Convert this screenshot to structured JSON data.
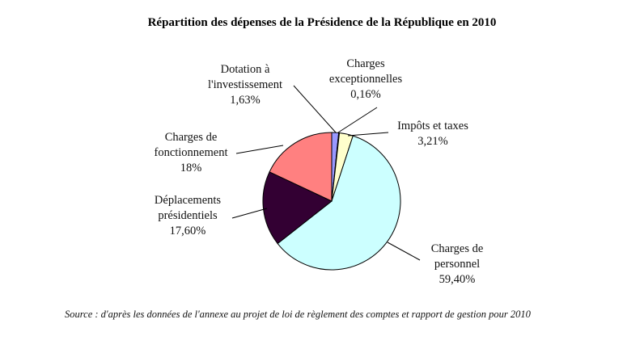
{
  "chart_data": {
    "type": "pie",
    "title": "Répartition des dépenses de la Présidence de la République en 2010",
    "slices": [
      {
        "label_lines": [
          "Dotation à",
          "l'investissement"
        ],
        "value_text": "1,63%",
        "value": 1.63,
        "color": "#9999ff"
      },
      {
        "label_lines": [
          "Charges",
          "exceptionnelles"
        ],
        "value_text": "0,16%",
        "value": 0.16,
        "color": "#993366"
      },
      {
        "label_lines": [
          "Impôts et taxes"
        ],
        "value_text": "3,21%",
        "value": 3.21,
        "color": "#ffffcc"
      },
      {
        "label_lines": [
          "Charges de",
          "personnel"
        ],
        "value_text": "59,40%",
        "value": 59.4,
        "color": "#ccffff"
      },
      {
        "label_lines": [
          "Déplacements",
          "présidentiels"
        ],
        "value_text": "17,60%",
        "value": 17.6,
        "color": "#330033"
      },
      {
        "label_lines": [
          "Charges de",
          "fonctionnement"
        ],
        "value_text": "18%",
        "value": 18,
        "color": "#ff8080"
      }
    ],
    "legend": "none"
  },
  "source": "Source : d'après les données de l'annexe au projet de loi de règlement des comptes et rapport de gestion pour 2010"
}
